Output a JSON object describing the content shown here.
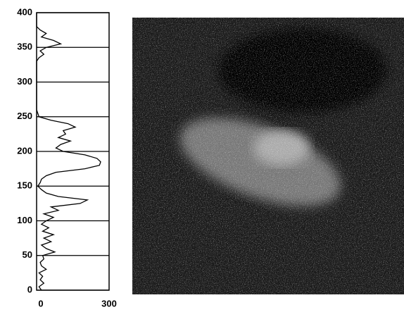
{
  "chart_data": {
    "type": "line",
    "orientation": "vertical",
    "y": [
      0,
      5,
      10,
      15,
      20,
      25,
      30,
      35,
      40,
      45,
      50,
      55,
      60,
      65,
      70,
      75,
      80,
      85,
      90,
      95,
      100,
      105,
      110,
      115,
      120,
      125,
      130,
      135,
      140,
      145,
      150,
      155,
      160,
      165,
      170,
      175,
      180,
      185,
      190,
      195,
      200,
      205,
      210,
      215,
      220,
      225,
      230,
      235,
      240,
      245,
      250,
      255,
      260,
      265,
      270,
      275,
      280,
      285,
      290,
      295,
      300,
      305,
      310,
      315,
      320,
      325,
      330,
      335,
      340,
      345,
      350,
      355,
      360,
      365,
      370,
      375,
      380,
      385,
      390,
      395,
      400
    ],
    "values": [
      20,
      10,
      30,
      15,
      25,
      10,
      40,
      20,
      15,
      30,
      25,
      75,
      40,
      20,
      60,
      30,
      70,
      25,
      50,
      20,
      40,
      70,
      30,
      90,
      60,
      180,
      210,
      90,
      40,
      20,
      5,
      15,
      20,
      40,
      80,
      200,
      260,
      265,
      250,
      200,
      110,
      80,
      100,
      140,
      90,
      120,
      110,
      160,
      130,
      60,
      10,
      5,
      0,
      0,
      0,
      0,
      0,
      0,
      0,
      0,
      0,
      0,
      0,
      0,
      0,
      0,
      0,
      10,
      30,
      15,
      40,
      100,
      70,
      20,
      40,
      15,
      0,
      0,
      0,
      0,
      0
    ],
    "color": "#000000",
    "xlim": [
      0,
      300
    ],
    "xticks": [
      0,
      300
    ],
    "ylim": [
      0,
      400
    ],
    "yticks": [
      0,
      50,
      100,
      150,
      200,
      250,
      300,
      350,
      400
    ],
    "grid": true
  }
}
